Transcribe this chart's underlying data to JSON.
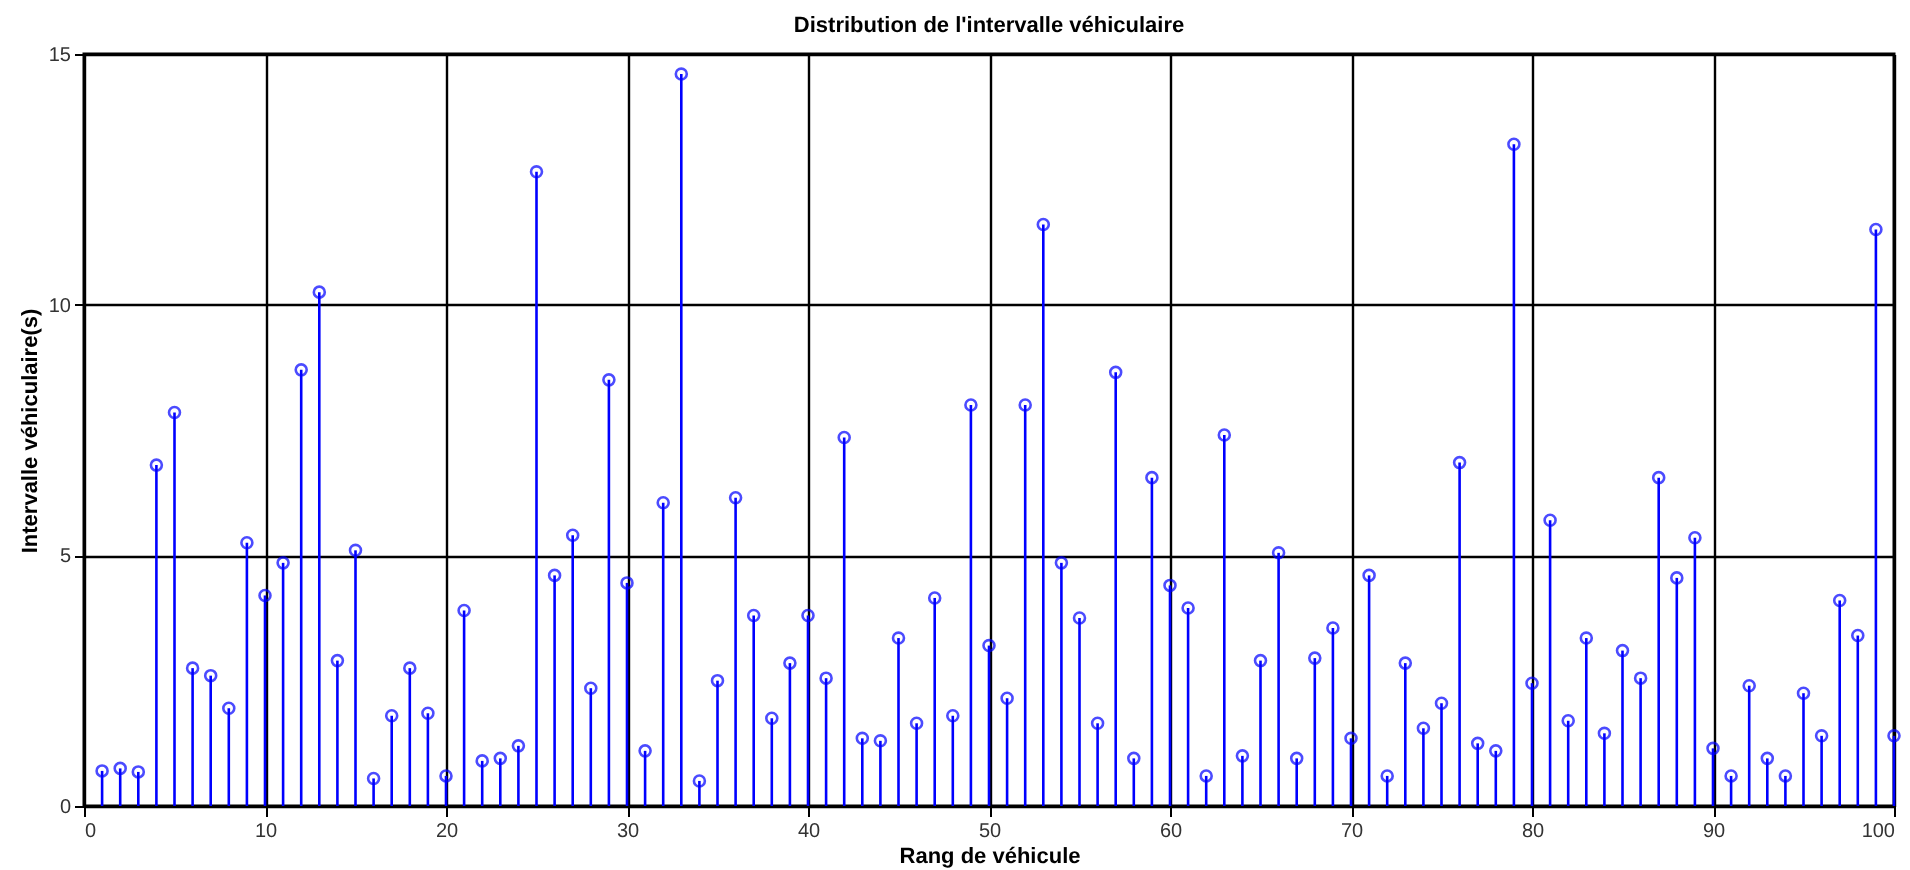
{
  "chart_data": {
    "type": "lollipop",
    "title": "Distribution de l'intervalle véhiculaire",
    "xlabel": "Rang de véhicule",
    "ylabel": "Intervalle véhiculaire(s)",
    "x": [
      1,
      2,
      3,
      4,
      5,
      6,
      7,
      8,
      9,
      10,
      11,
      12,
      13,
      14,
      15,
      16,
      17,
      18,
      19,
      20,
      21,
      22,
      23,
      24,
      25,
      26,
      27,
      28,
      29,
      30,
      31,
      32,
      33,
      34,
      35,
      36,
      37,
      38,
      39,
      40,
      41,
      42,
      43,
      44,
      45,
      46,
      47,
      48,
      49,
      50,
      51,
      52,
      53,
      54,
      55,
      56,
      57,
      58,
      59,
      60,
      61,
      62,
      63,
      64,
      65,
      66,
      67,
      68,
      69,
      70,
      71,
      72,
      73,
      74,
      75,
      76,
      77,
      78,
      79,
      80,
      81,
      82,
      83,
      84,
      85,
      86,
      87,
      88,
      89,
      90,
      91,
      92,
      93,
      94,
      95,
      96,
      97,
      98,
      99,
      100
    ],
    "values": [
      0.7,
      0.75,
      0.68,
      6.8,
      7.85,
      2.75,
      2.6,
      1.95,
      5.25,
      4.2,
      4.85,
      8.7,
      10.25,
      2.9,
      5.1,
      0.55,
      1.8,
      2.75,
      1.85,
      0.6,
      3.9,
      0.9,
      0.95,
      1.2,
      12.65,
      4.6,
      5.4,
      2.35,
      8.5,
      4.45,
      1.1,
      6.05,
      14.6,
      0.5,
      2.5,
      6.15,
      3.8,
      1.75,
      2.85,
      3.8,
      2.55,
      7.35,
      1.35,
      1.3,
      3.35,
      1.65,
      4.15,
      1.8,
      8.0,
      3.2,
      2.15,
      8.0,
      11.6,
      4.85,
      3.75,
      1.65,
      8.65,
      0.95,
      6.55,
      4.4,
      3.95,
      0.6,
      7.4,
      1.0,
      2.9,
      5.05,
      0.95,
      2.95,
      3.55,
      1.35,
      4.6,
      0.6,
      2.85,
      1.55,
      2.05,
      6.85,
      1.25,
      1.1,
      13.2,
      2.45,
      5.7,
      1.7,
      3.35,
      1.45,
      3.1,
      2.55,
      6.55,
      4.55,
      5.35,
      1.15,
      0.6,
      2.4,
      0.95,
      0.6,
      2.25,
      1.4,
      4.1,
      3.4,
      11.5,
      1.4
    ],
    "color": "#0000ff",
    "xlim": [
      0,
      100
    ],
    "xticks": [
      0,
      10,
      20,
      30,
      40,
      50,
      60,
      70,
      80,
      90,
      100
    ],
    "ylim": [
      0,
      15
    ],
    "yticks": [
      0,
      5,
      10,
      15
    ],
    "grid": true,
    "marker": "circle"
  }
}
